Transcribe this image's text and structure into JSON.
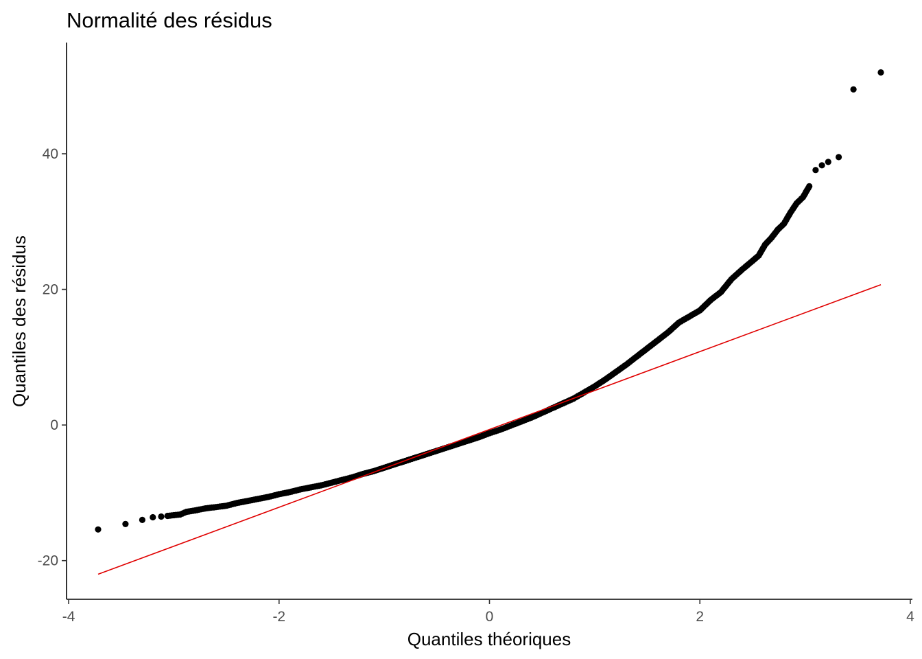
{
  "chart_data": {
    "type": "scatter",
    "title": "Normalité des résidus",
    "xlabel": "Quantiles théoriques",
    "ylabel": "Quantiles des résidus",
    "xlim": [
      -4.02,
      4.02
    ],
    "ylim": [
      -25.7,
      56.4
    ],
    "x_ticks": [
      {
        "value": -4,
        "label": "-4"
      },
      {
        "value": -2,
        "label": "-2"
      },
      {
        "value": 0,
        "label": "0"
      },
      {
        "value": 2,
        "label": "2"
      },
      {
        "value": 4,
        "label": "4"
      }
    ],
    "y_ticks": [
      {
        "value": -20,
        "label": "-20"
      },
      {
        "value": 0,
        "label": "0"
      },
      {
        "value": 20,
        "label": "20"
      },
      {
        "value": 40,
        "label": "40"
      }
    ],
    "grid": false,
    "point_color": "#000000",
    "line_color": "#e00000",
    "reference_line": {
      "x": [
        -3.72,
        3.72
      ],
      "y": [
        -22.0,
        20.7
      ]
    },
    "points": [
      [
        -3.72,
        -15.4
      ],
      [
        -3.46,
        -14.6
      ],
      [
        -3.3,
        -14.0
      ],
      [
        -3.2,
        -13.6
      ],
      [
        -3.12,
        -13.5
      ],
      [
        -3.06,
        -13.4
      ],
      [
        -3.0,
        -13.3
      ],
      [
        -2.94,
        -13.2
      ],
      [
        -2.88,
        -12.8
      ],
      [
        -2.8,
        -12.6
      ],
      [
        -2.7,
        -12.3
      ],
      [
        -2.6,
        -12.1
      ],
      [
        -2.5,
        -11.9
      ],
      [
        -2.4,
        -11.5
      ],
      [
        -2.3,
        -11.2
      ],
      [
        -2.2,
        -10.9
      ],
      [
        -2.1,
        -10.6
      ],
      [
        -2.0,
        -10.2
      ],
      [
        -1.9,
        -9.9
      ],
      [
        -1.8,
        -9.5
      ],
      [
        -1.7,
        -9.2
      ],
      [
        -1.6,
        -8.9
      ],
      [
        -1.5,
        -8.5
      ],
      [
        -1.4,
        -8.1
      ],
      [
        -1.3,
        -7.7
      ],
      [
        -1.2,
        -7.2
      ],
      [
        -1.1,
        -6.8
      ],
      [
        -1.0,
        -6.3
      ],
      [
        -0.9,
        -5.8
      ],
      [
        -0.8,
        -5.3
      ],
      [
        -0.7,
        -4.8
      ],
      [
        -0.6,
        -4.3
      ],
      [
        -0.5,
        -3.8
      ],
      [
        -0.4,
        -3.3
      ],
      [
        -0.3,
        -2.8
      ],
      [
        -0.2,
        -2.3
      ],
      [
        -0.1,
        -1.8
      ],
      [
        0.0,
        -1.2
      ],
      [
        0.1,
        -0.7
      ],
      [
        0.2,
        -0.1
      ],
      [
        0.3,
        0.5
      ],
      [
        0.4,
        1.1
      ],
      [
        0.5,
        1.8
      ],
      [
        0.6,
        2.5
      ],
      [
        0.7,
        3.2
      ],
      [
        0.8,
        3.9
      ],
      [
        0.9,
        4.8
      ],
      [
        1.0,
        5.7
      ],
      [
        1.1,
        6.7
      ],
      [
        1.2,
        7.8
      ],
      [
        1.3,
        8.9
      ],
      [
        1.4,
        10.1
      ],
      [
        1.5,
        11.3
      ],
      [
        1.6,
        12.5
      ],
      [
        1.7,
        13.7
      ],
      [
        1.8,
        15.1
      ],
      [
        1.9,
        16.0
      ],
      [
        2.0,
        16.9
      ],
      [
        2.1,
        18.4
      ],
      [
        2.2,
        19.6
      ],
      [
        2.3,
        21.5
      ],
      [
        2.4,
        22.9
      ],
      [
        2.5,
        24.2
      ],
      [
        2.56,
        25.0
      ],
      [
        2.62,
        26.6
      ],
      [
        2.68,
        27.6
      ],
      [
        2.74,
        28.8
      ],
      [
        2.8,
        29.7
      ],
      [
        2.86,
        31.3
      ],
      [
        2.92,
        32.7
      ],
      [
        2.98,
        33.6
      ],
      [
        3.04,
        35.2
      ],
      [
        3.1,
        37.6
      ],
      [
        3.16,
        38.3
      ],
      [
        3.22,
        38.8
      ],
      [
        3.32,
        39.5
      ],
      [
        3.46,
        49.5
      ],
      [
        3.72,
        52.0
      ]
    ]
  }
}
